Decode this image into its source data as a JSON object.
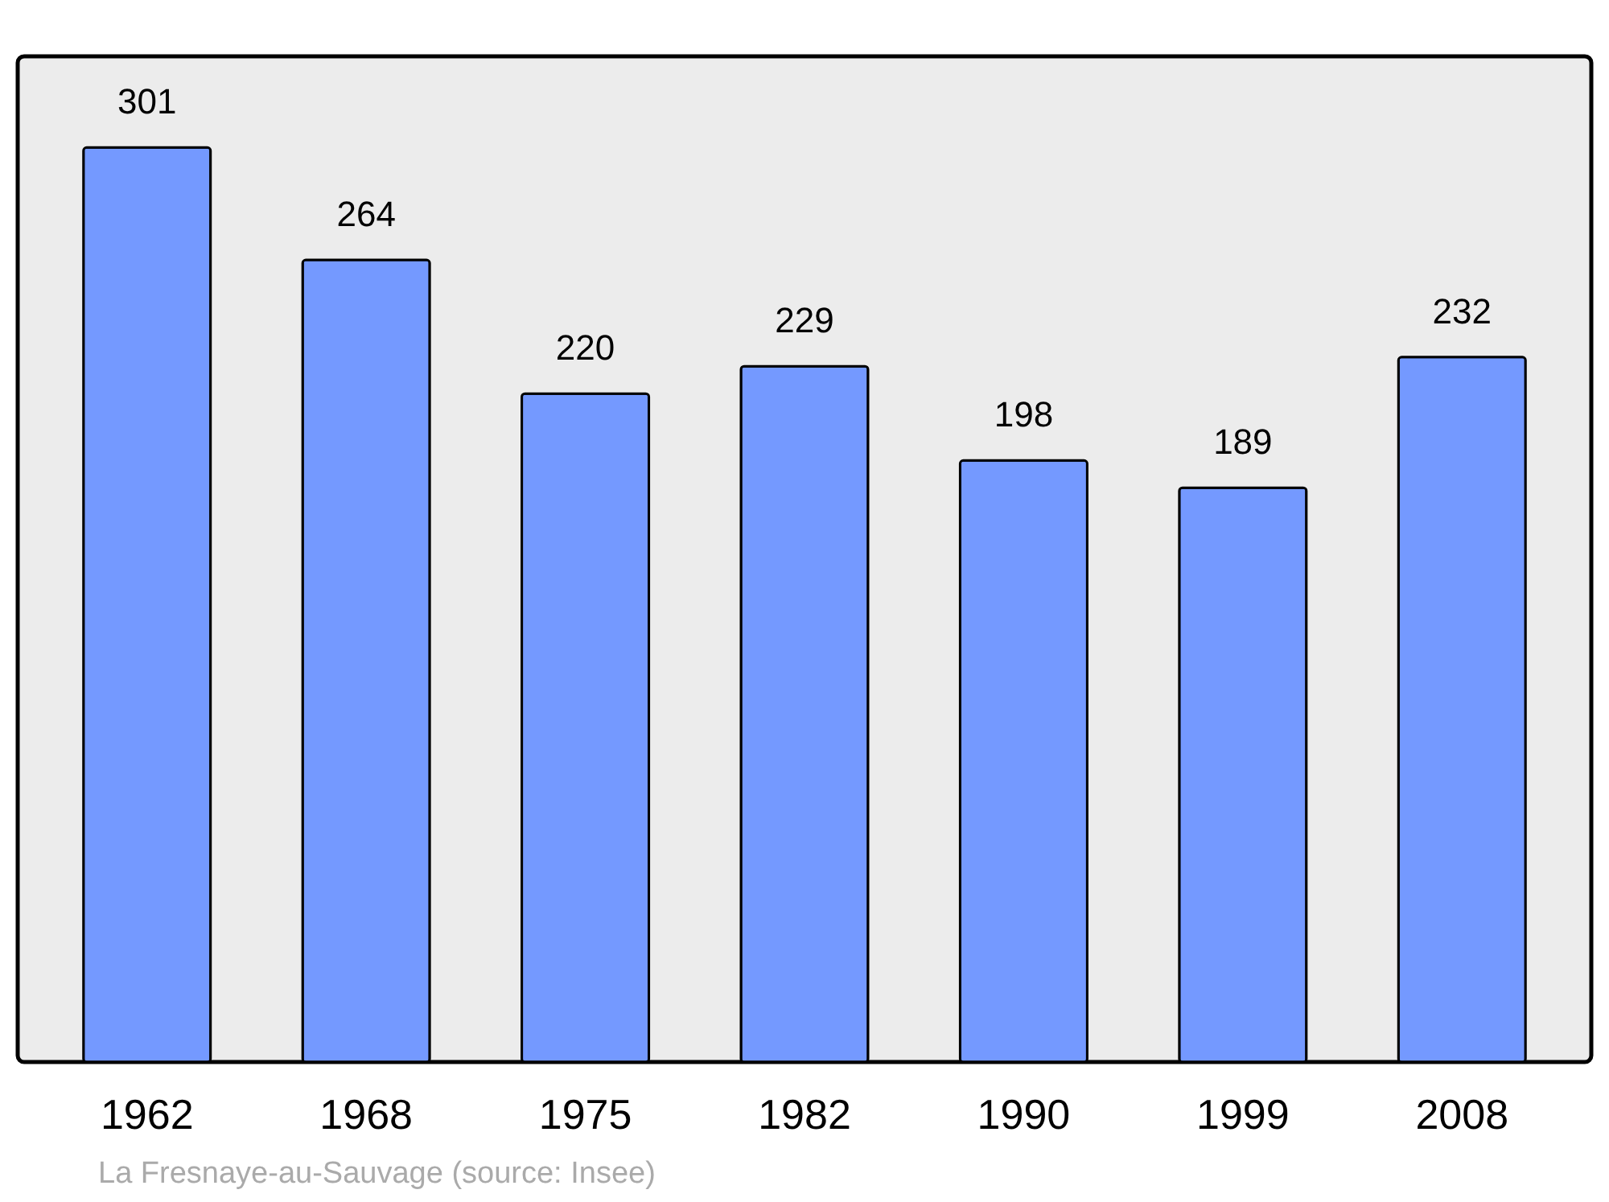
{
  "chart_data": {
    "type": "bar",
    "categories": [
      "1962",
      "1968",
      "1975",
      "1982",
      "1990",
      "1999",
      "2008"
    ],
    "values": [
      301,
      264,
      220,
      229,
      198,
      189,
      232
    ],
    "color": "#7499ff",
    "ylim": [
      0,
      331
    ],
    "data_labels": true,
    "annotations": [
      "La Fresnaye-au-Sauvage    (source: Insee)"
    ]
  }
}
